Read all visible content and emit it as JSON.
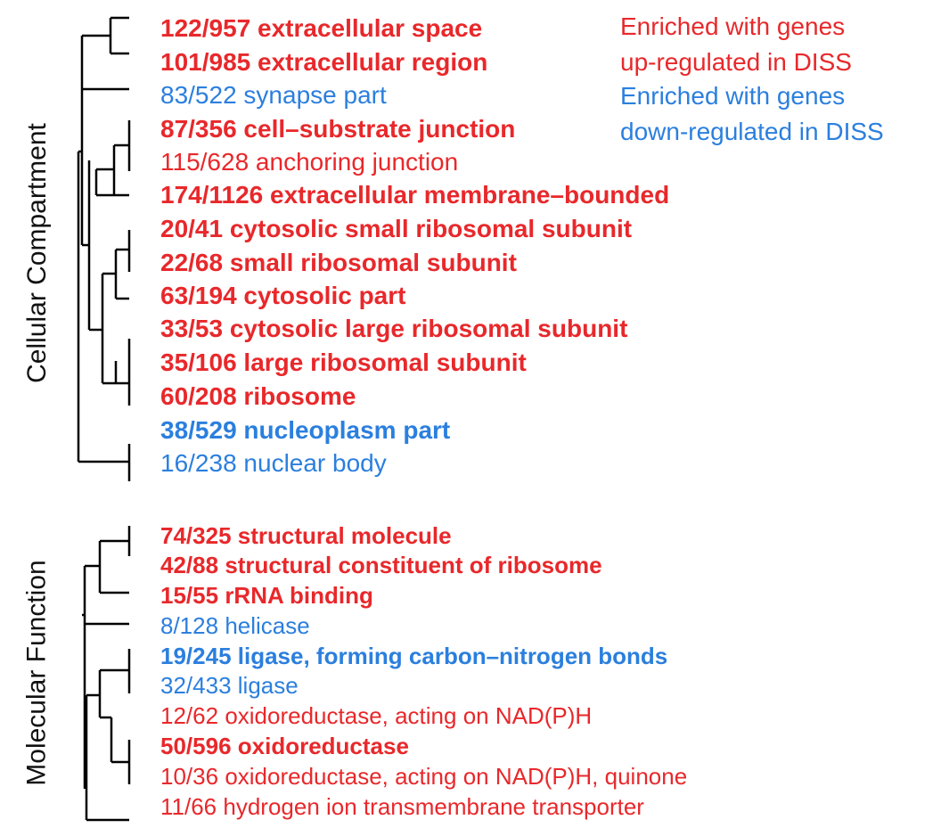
{
  "colors": {
    "up": "#e8282b",
    "down": "#2b7fde",
    "tree": "#000000"
  },
  "legend": [
    {
      "text": "Enriched with genes",
      "color_key": "up"
    },
    {
      "text": "up-regulated in DISS",
      "color_key": "up"
    },
    {
      "text": "Enriched with genes",
      "color_key": "down"
    },
    {
      "text": "down-regulated in DISS",
      "color_key": "down"
    }
  ],
  "sections": [
    {
      "label": "Cellular Compartment",
      "terms": [
        {
          "count": "122/957",
          "name": "extracellular space",
          "direction": "up",
          "bold": true
        },
        {
          "count": "101/985",
          "name": "extracellular region",
          "direction": "up",
          "bold": true
        },
        {
          "count": "83/522",
          "name": "synapse part",
          "direction": "down",
          "bold": false
        },
        {
          "count": "87/356",
          "name": "cell–substrate junction",
          "direction": "up",
          "bold": true
        },
        {
          "count": "115/628",
          "name": "anchoring junction",
          "direction": "up",
          "bold": false
        },
        {
          "count": "174/1126",
          "name": "extracellular membrane–bounded",
          "direction": "up",
          "bold": true
        },
        {
          "count": "20/41",
          "name": "cytosolic small ribosomal subunit",
          "direction": "up",
          "bold": true
        },
        {
          "count": "22/68",
          "name": "small ribosomal subunit",
          "direction": "up",
          "bold": true
        },
        {
          "count": "63/194",
          "name": "cytosolic part",
          "direction": "up",
          "bold": true
        },
        {
          "count": "33/53",
          "name": "cytosolic large ribosomal subunit",
          "direction": "up",
          "bold": true
        },
        {
          "count": "35/106",
          "name": "large ribosomal subunit",
          "direction": "up",
          "bold": true
        },
        {
          "count": "60/208",
          "name": "ribosome",
          "direction": "up",
          "bold": true
        },
        {
          "count": "38/529",
          "name": "nucleoplasm part",
          "direction": "down",
          "bold": true
        },
        {
          "count": "16/238",
          "name": "nuclear body",
          "direction": "down",
          "bold": false
        }
      ]
    },
    {
      "label": "Molecular Function",
      "terms": [
        {
          "count": "74/325",
          "name": "structural molecule",
          "direction": "up",
          "bold": true
        },
        {
          "count": "42/88",
          "name": "structural constituent of ribosome",
          "direction": "up",
          "bold": true
        },
        {
          "count": "15/55",
          "name": "rRNA binding",
          "direction": "up",
          "bold": true
        },
        {
          "count": "8/128",
          "name": "helicase",
          "direction": "down",
          "bold": false
        },
        {
          "count": "19/245",
          "name": "ligase, forming carbon–nitrogen bonds",
          "direction": "down",
          "bold": true
        },
        {
          "count": "32/433",
          "name": "ligase",
          "direction": "down",
          "bold": false
        },
        {
          "count": "12/62",
          "name": "oxidoreductase, acting on NAD(P)H",
          "direction": "up",
          "bold": false
        },
        {
          "count": "50/596",
          "name": "oxidoreductase",
          "direction": "up",
          "bold": true
        },
        {
          "count": "10/36",
          "name": "oxidoreductase, acting on NAD(P)H, quinone",
          "direction": "up",
          "bold": false
        },
        {
          "count": "11/66",
          "name": "hydrogen ion transmembrane transporter",
          "direction": "up",
          "bold": false
        }
      ]
    }
  ]
}
